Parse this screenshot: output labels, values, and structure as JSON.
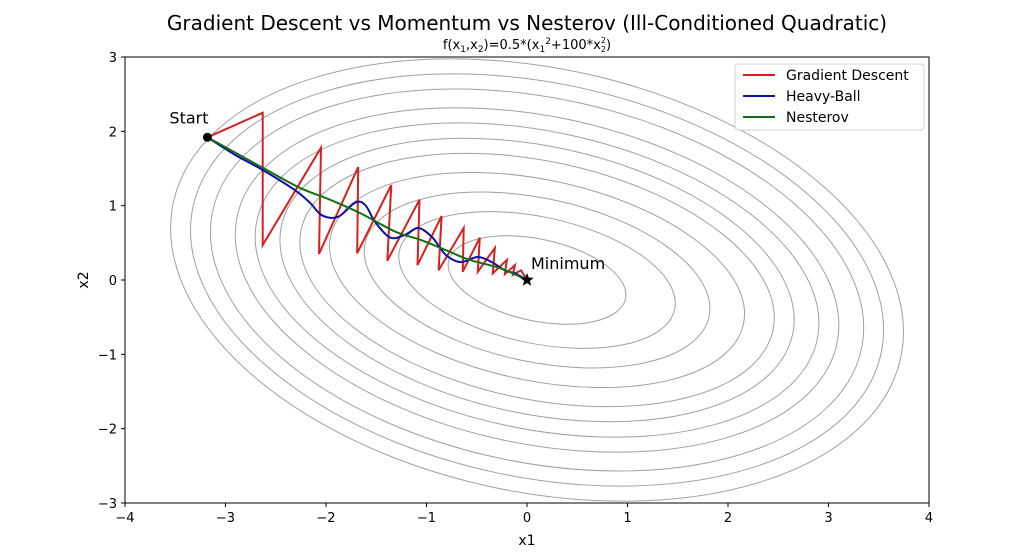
{
  "chart_data": {
    "type": "line",
    "title": "Gradient Descent vs Momentum vs Nesterov (Ill-Conditioned Quadratic)",
    "subtitle": {
      "prefix": "f(x",
      "sub1": "1",
      "mid1": ",x",
      "sub2": "2",
      "mid2": ")=0.5*(x",
      "sub3": "1",
      "sup3": "2",
      "mid3": "+100*x",
      "sub4": "2",
      "sup4": "2",
      "suffix": ")"
    },
    "xlabel": "x1",
    "ylabel": "x2",
    "xlim": [
      -4,
      4
    ],
    "ylim": [
      -3,
      3
    ],
    "xticks": [
      -4,
      -3,
      -2,
      -1,
      0,
      1,
      2,
      3,
      4
    ],
    "yticks": [
      -3,
      -2,
      -1,
      0,
      1,
      2,
      3
    ],
    "grid": false,
    "legend_placement": "top-right",
    "series": [
      {
        "name": "Gradient Descent",
        "color": "#d62020",
        "points": [
          [
            -3.18,
            1.92
          ],
          [
            -2.63,
            2.25
          ],
          [
            -2.63,
            0.47
          ],
          [
            -2.05,
            1.78
          ],
          [
            -2.07,
            0.35
          ],
          [
            -1.68,
            1.52
          ],
          [
            -1.69,
            0.36
          ],
          [
            -1.35,
            1.28
          ],
          [
            -1.39,
            0.26
          ],
          [
            -1.07,
            1.08
          ],
          [
            -1.09,
            0.2
          ],
          [
            -0.85,
            0.86
          ],
          [
            -0.88,
            0.13
          ],
          [
            -0.63,
            0.7
          ],
          [
            -0.64,
            0.11
          ],
          [
            -0.47,
            0.57
          ],
          [
            -0.49,
            0.11
          ],
          [
            -0.32,
            0.43
          ],
          [
            -0.34,
            0.09
          ],
          [
            -0.2,
            0.27
          ],
          [
            -0.22,
            0.08
          ],
          [
            -0.12,
            0.2
          ],
          [
            -0.14,
            0.07
          ],
          [
            -0.06,
            0.13
          ],
          [
            0.0,
            0.0
          ]
        ]
      },
      {
        "name": "Heavy-Ball",
        "color": "#1010a8",
        "points": [
          [
            -3.18,
            1.92
          ],
          [
            -2.9,
            1.68
          ],
          [
            -2.63,
            1.48
          ],
          [
            -2.31,
            1.21
          ],
          [
            -2.16,
            1.04
          ],
          [
            -2.04,
            0.87
          ],
          [
            -1.88,
            0.85
          ],
          [
            -1.71,
            1.04
          ],
          [
            -1.61,
            1.01
          ],
          [
            -1.51,
            0.78
          ],
          [
            -1.36,
            0.57
          ],
          [
            -1.21,
            0.61
          ],
          [
            -1.08,
            0.7
          ],
          [
            -0.94,
            0.57
          ],
          [
            -0.81,
            0.34
          ],
          [
            -0.66,
            0.24
          ],
          [
            -0.49,
            0.31
          ],
          [
            -0.35,
            0.24
          ],
          [
            -0.22,
            0.13
          ],
          [
            -0.12,
            0.09
          ],
          [
            0.0,
            0.0
          ]
        ]
      },
      {
        "name": "Nesterov",
        "color": "#127012",
        "points": [
          [
            -3.18,
            1.92
          ],
          [
            -2.63,
            1.51
          ],
          [
            -2.26,
            1.24
          ],
          [
            -1.96,
            1.08
          ],
          [
            -1.66,
            0.9
          ],
          [
            -1.31,
            0.65
          ],
          [
            -1.06,
            0.54
          ],
          [
            -0.77,
            0.38
          ],
          [
            -0.57,
            0.27
          ],
          [
            -0.27,
            0.16
          ],
          [
            0.0,
            0.0
          ]
        ]
      }
    ],
    "contours": {
      "color": "#a0a0a0",
      "center": [
        0.1,
        0.0
      ],
      "tilt_deg": 12,
      "levels": [
        {
          "a": 0.9,
          "b": 0.55
        },
        {
          "a": 1.4,
          "b": 0.85
        },
        {
          "a": 1.75,
          "b": 1.1
        },
        {
          "a": 2.1,
          "b": 1.35
        },
        {
          "a": 2.4,
          "b": 1.6
        },
        {
          "a": 2.6,
          "b": 1.8
        },
        {
          "a": 2.85,
          "b": 2.0
        },
        {
          "a": 3.05,
          "b": 2.2
        },
        {
          "a": 3.3,
          "b": 2.45
        },
        {
          "a": 3.5,
          "b": 2.65
        },
        {
          "a": 3.7,
          "b": 2.85
        }
      ]
    },
    "annotations": [
      {
        "name": "start",
        "text": "Start",
        "point": [
          -3.18,
          1.92
        ],
        "marker": "circle"
      },
      {
        "name": "minimum",
        "text": "Minimum",
        "point": [
          0.0,
          0.0
        ],
        "marker": "star"
      }
    ]
  }
}
